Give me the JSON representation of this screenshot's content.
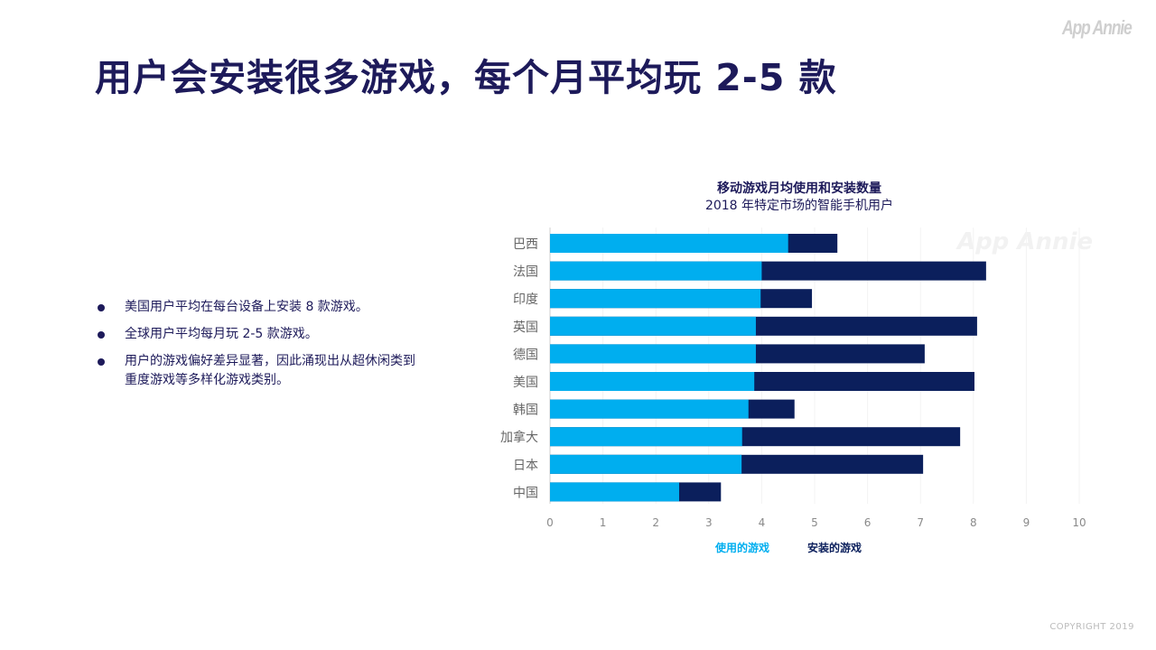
{
  "logo": "App Annie",
  "title": "用户会安装很多游戏，每个月平均玩 2-5 款",
  "bullets": [
    "美国用户平均在每台设备上安装 8 款游戏。",
    "全球用户平均每月玩 2-5 款游戏。",
    "用户的游戏偏好差异显著，因此涌现出从超休闲类到重度游戏等多样化游戏类别。"
  ],
  "copyright": "COPYRIGHT 2019",
  "chart_data": {
    "type": "bar",
    "orientation": "horizontal",
    "title": "移动游戏月均使用和安装数量",
    "subtitle": "2018 年特定市场的智能手机用户",
    "watermark": "App Annie",
    "categories": [
      "巴西",
      "法国",
      "印度",
      "英国",
      "德国",
      "美国",
      "韩国",
      "加拿大",
      "日本",
      "中国"
    ],
    "series": [
      {
        "name": "使用的游戏",
        "color": "#00aeef",
        "values": [
          4.5,
          4.0,
          3.98,
          3.89,
          3.89,
          3.86,
          3.75,
          3.63,
          3.62,
          2.44
        ]
      },
      {
        "name": "安装的游戏",
        "color": "#0b1f5c",
        "values": [
          5.43,
          8.24,
          4.95,
          8.07,
          7.08,
          8.02,
          4.62,
          7.75,
          7.05,
          3.23
        ]
      }
    ],
    "xlim": [
      0,
      10
    ],
    "xticks": [
      "0",
      "1",
      "2",
      "3",
      "4",
      "5",
      "6",
      "7",
      "8",
      "9",
      "10"
    ],
    "grid": true,
    "legend": "bottom"
  }
}
